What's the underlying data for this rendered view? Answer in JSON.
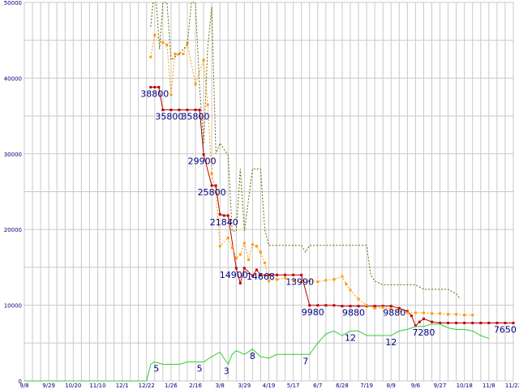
{
  "chart_data": {
    "type": "line",
    "grid": true,
    "ylim": [
      0,
      50000
    ],
    "y_ticks": [
      "0",
      "10000",
      "20000",
      "30000",
      "40000",
      "50000"
    ],
    "y_tick_values": [
      0,
      10000,
      20000,
      30000,
      40000,
      50000
    ],
    "x_tick_labels": [
      "9/8",
      "9/29",
      "10/20",
      "11/10",
      "12/1",
      "12/22",
      "1/26",
      "2/16",
      "3/8",
      "3/29",
      "4/19",
      "5/17",
      "6/7",
      "6/28",
      "7/19",
      "8/9",
      "9/6",
      "9/27",
      "10/18",
      "11/8",
      "11/22"
    ],
    "x_index_range": [
      0,
      60
    ],
    "colors": {
      "min_price": "#bb0000",
      "avg_price": "#ff9900",
      "max_price": "#666600",
      "count": "#33cc33",
      "labels": "#000080",
      "grid": "#c8c8c8"
    },
    "series": [
      {
        "key": "min_price",
        "style": "solid",
        "markers": true,
        "values": [
          [
            15.5,
            38800
          ],
          [
            16.0,
            38800
          ],
          [
            16.5,
            38800
          ],
          [
            17.0,
            35800
          ],
          [
            18.0,
            35800
          ],
          [
            19.0,
            35800
          ],
          [
            20.0,
            35800
          ],
          [
            21.0,
            35800
          ],
          [
            21.5,
            35800
          ],
          [
            22.0,
            29900
          ],
          [
            23.0,
            25800
          ],
          [
            23.5,
            25800
          ],
          [
            24.0,
            22000
          ],
          [
            24.5,
            21840
          ],
          [
            25.0,
            21840
          ],
          [
            26.0,
            14900
          ],
          [
            26.5,
            12900
          ],
          [
            27.0,
            14900
          ],
          [
            28.0,
            13900
          ],
          [
            28.5,
            14668
          ],
          [
            29.0,
            14000
          ],
          [
            30.0,
            14000
          ],
          [
            31.0,
            14000
          ],
          [
            32.0,
            14000
          ],
          [
            33.0,
            14000
          ],
          [
            34.0,
            13990
          ],
          [
            35.0,
            9980
          ],
          [
            36.0,
            9980
          ],
          [
            37.0,
            9980
          ],
          [
            38.0,
            9980
          ],
          [
            39.0,
            9880
          ],
          [
            40.0,
            9880
          ],
          [
            41.0,
            9880
          ],
          [
            42.0,
            9880
          ],
          [
            43.0,
            9880
          ],
          [
            44.0,
            9880
          ],
          [
            45.0,
            9880
          ],
          [
            46.0,
            9600
          ],
          [
            47.0,
            9200
          ],
          [
            47.5,
            8600
          ],
          [
            48.0,
            7280
          ],
          [
            48.5,
            7800
          ],
          [
            49.0,
            8200
          ],
          [
            50.0,
            7800
          ],
          [
            51.0,
            7650
          ],
          [
            52.0,
            7650
          ],
          [
            53.0,
            7650
          ],
          [
            54.0,
            7650
          ],
          [
            55.0,
            7650
          ],
          [
            56.0,
            7650
          ],
          [
            57.0,
            7650
          ],
          [
            58.0,
            7650
          ],
          [
            59.0,
            7650
          ],
          [
            60.0,
            7650
          ]
        ]
      },
      {
        "key": "avg_price",
        "style": "dotted",
        "markers": true,
        "values": [
          [
            15.5,
            42800
          ],
          [
            16.0,
            45700
          ],
          [
            17.0,
            44700
          ],
          [
            17.5,
            44400
          ],
          [
            18.0,
            37800
          ],
          [
            18.5,
            43200
          ],
          [
            19.0,
            43200
          ],
          [
            19.5,
            43200
          ],
          [
            20.0,
            44600
          ],
          [
            21.0,
            39200
          ],
          [
            22.0,
            42400
          ],
          [
            22.5,
            36500
          ],
          [
            23.0,
            27400
          ],
          [
            23.5,
            25000
          ],
          [
            24.0,
            17800
          ],
          [
            25.0,
            18900
          ],
          [
            25.5,
            17600
          ],
          [
            26.0,
            16200
          ],
          [
            26.5,
            16700
          ],
          [
            27.0,
            18200
          ],
          [
            27.5,
            16000
          ],
          [
            28.0,
            18000
          ],
          [
            28.5,
            17800
          ],
          [
            29.0,
            17000
          ],
          [
            29.5,
            15600
          ],
          [
            30.0,
            13200
          ],
          [
            31.0,
            13400
          ],
          [
            32.0,
            13600
          ],
          [
            33.0,
            13300
          ],
          [
            34.0,
            13000
          ],
          [
            35.0,
            13200
          ],
          [
            36.0,
            13100
          ],
          [
            37.0,
            13300
          ],
          [
            38.0,
            13400
          ],
          [
            39.0,
            13800
          ],
          [
            39.5,
            12800
          ],
          [
            40.0,
            12000
          ],
          [
            41.0,
            10800
          ],
          [
            42.0,
            10000
          ],
          [
            43.0,
            9600
          ],
          [
            44.0,
            9700
          ],
          [
            45.0,
            9500
          ],
          [
            46.0,
            9200
          ],
          [
            47.0,
            9000
          ],
          [
            48.0,
            9000
          ],
          [
            49.0,
            9000
          ],
          [
            50.0,
            8900
          ],
          [
            51.0,
            8900
          ],
          [
            52.0,
            8800
          ],
          [
            53.0,
            8800
          ],
          [
            54.0,
            8700
          ],
          [
            55.0,
            8700
          ]
        ]
      },
      {
        "key": "max_price",
        "style": "dotted",
        "markers": false,
        "values": [
          [
            15.5,
            46800
          ],
          [
            15.8,
            53000
          ],
          [
            16.2,
            53000
          ],
          [
            16.6,
            43800
          ],
          [
            17.0,
            53000
          ],
          [
            17.5,
            53000
          ],
          [
            18.0,
            42400
          ],
          [
            19.0,
            43200
          ],
          [
            20.0,
            44400
          ],
          [
            20.5,
            53000
          ],
          [
            21.0,
            53000
          ],
          [
            21.5,
            38900
          ],
          [
            22.0,
            31300
          ],
          [
            22.5,
            44000
          ],
          [
            23.0,
            49400
          ],
          [
            23.5,
            30000
          ],
          [
            24.0,
            31400
          ],
          [
            25.0,
            29800
          ],
          [
            25.5,
            19800
          ],
          [
            26.0,
            19800
          ],
          [
            26.5,
            28000
          ],
          [
            27.0,
            19800
          ],
          [
            28.0,
            28000
          ],
          [
            29.0,
            28000
          ],
          [
            29.5,
            20000
          ],
          [
            30.0,
            17900
          ],
          [
            31.0,
            17900
          ],
          [
            32.0,
            17900
          ],
          [
            33.0,
            17900
          ],
          [
            34.0,
            17900
          ],
          [
            34.5,
            17000
          ],
          [
            35.0,
            17900
          ],
          [
            36.0,
            17900
          ],
          [
            37.0,
            17900
          ],
          [
            38.0,
            17900
          ],
          [
            39.0,
            17900
          ],
          [
            40.0,
            17900
          ],
          [
            41.0,
            17900
          ],
          [
            42.0,
            17900
          ],
          [
            42.5,
            14000
          ],
          [
            43.0,
            13200
          ],
          [
            44.0,
            12700
          ],
          [
            45.0,
            12700
          ],
          [
            46.0,
            12700
          ],
          [
            47.0,
            12700
          ],
          [
            48.0,
            12700
          ],
          [
            49.0,
            12100
          ],
          [
            50.0,
            12100
          ],
          [
            51.0,
            12100
          ],
          [
            52.0,
            12100
          ],
          [
            53.0,
            11500
          ],
          [
            53.5,
            10800
          ]
        ]
      },
      {
        "key": "count",
        "style": "solid",
        "markers": false,
        "values": [
          [
            0,
            0
          ],
          [
            1,
            0
          ],
          [
            2,
            0
          ],
          [
            3,
            0
          ],
          [
            4,
            0
          ],
          [
            5,
            0
          ],
          [
            6,
            0
          ],
          [
            7,
            0
          ],
          [
            8,
            0
          ],
          [
            9,
            0
          ],
          [
            10,
            0
          ],
          [
            11,
            0
          ],
          [
            12,
            0
          ],
          [
            13,
            0
          ],
          [
            14,
            0
          ],
          [
            15,
            0
          ],
          [
            15.5,
            2200
          ],
          [
            16.0,
            2500
          ],
          [
            17.0,
            2200
          ],
          [
            18.0,
            2200
          ],
          [
            19.0,
            2200
          ],
          [
            20.0,
            2500
          ],
          [
            21.0,
            2500
          ],
          [
            22.0,
            2500
          ],
          [
            23.0,
            3200
          ],
          [
            24.0,
            3800
          ],
          [
            24.5,
            3000
          ],
          [
            25.0,
            2200
          ],
          [
            25.5,
            3500
          ],
          [
            26.0,
            4000
          ],
          [
            27.0,
            3500
          ],
          [
            28.0,
            4200
          ],
          [
            29.0,
            3200
          ],
          [
            30.0,
            3000
          ],
          [
            31.0,
            3500
          ],
          [
            32.0,
            3500
          ],
          [
            33.0,
            3500
          ],
          [
            34.0,
            3500
          ],
          [
            35.0,
            3500
          ],
          [
            36.0,
            5000
          ],
          [
            37.0,
            6200
          ],
          [
            38.0,
            6600
          ],
          [
            39.0,
            6000
          ],
          [
            40.0,
            6600
          ],
          [
            41.0,
            6600
          ],
          [
            42.0,
            6000
          ],
          [
            43.0,
            6000
          ],
          [
            44.0,
            6000
          ],
          [
            45.0,
            6000
          ],
          [
            46.0,
            6600
          ],
          [
            47.0,
            6800
          ],
          [
            48.0,
            7200
          ],
          [
            49.0,
            7200
          ],
          [
            50.0,
            7500
          ],
          [
            51.0,
            7500
          ],
          [
            52.0,
            7000
          ],
          [
            53.0,
            6800
          ],
          [
            54.0,
            6800
          ],
          [
            55.0,
            6600
          ],
          [
            56.0,
            6000
          ],
          [
            57.0,
            5600
          ]
        ]
      }
    ],
    "data_labels": [
      {
        "text": "38800",
        "x": 16.0,
        "y": 38800,
        "dy": 12
      },
      {
        "text": "35800",
        "x": 17.8,
        "y": 35800,
        "dy": 12
      },
      {
        "text": "35800",
        "x": 21.0,
        "y": 35800,
        "dy": 12
      },
      {
        "text": "29900",
        "x": 21.8,
        "y": 29900,
        "dy": 12
      },
      {
        "text": "25800",
        "x": 23.0,
        "y": 25800,
        "dy": 12
      },
      {
        "text": "21840",
        "x": 24.5,
        "y": 21840,
        "dy": 12
      },
      {
        "text": "14900",
        "x": 25.7,
        "y": 14900,
        "dy": 12
      },
      {
        "text": "14668",
        "x": 29.0,
        "y": 14668,
        "dy": 12
      },
      {
        "text": "13990",
        "x": 33.8,
        "y": 13990,
        "dy": 12
      },
      {
        "text": "9980",
        "x": 35.4,
        "y": 9980,
        "dy": 12
      },
      {
        "text": "9880",
        "x": 40.4,
        "y": 9880,
        "dy": 12
      },
      {
        "text": "9880",
        "x": 45.4,
        "y": 9880,
        "dy": 12
      },
      {
        "text": "7280",
        "x": 49.0,
        "y": 7280,
        "dy": 12
      },
      {
        "text": "7650",
        "x": 59.0,
        "y": 7650,
        "dy": 12
      },
      {
        "text": "5",
        "x": 16.2,
        "y": 2500,
        "dy": 12
      },
      {
        "text": "5",
        "x": 21.5,
        "y": 2500,
        "dy": 12
      },
      {
        "text": "3",
        "x": 24.8,
        "y": 2200,
        "dy": 12
      },
      {
        "text": "8",
        "x": 28.0,
        "y": 4200,
        "dy": 12
      },
      {
        "text": "7",
        "x": 34.5,
        "y": 3500,
        "dy": 12
      },
      {
        "text": "12",
        "x": 40.0,
        "y": 6600,
        "dy": 12
      },
      {
        "text": "12",
        "x": 45.0,
        "y": 6000,
        "dy": 12
      }
    ]
  }
}
